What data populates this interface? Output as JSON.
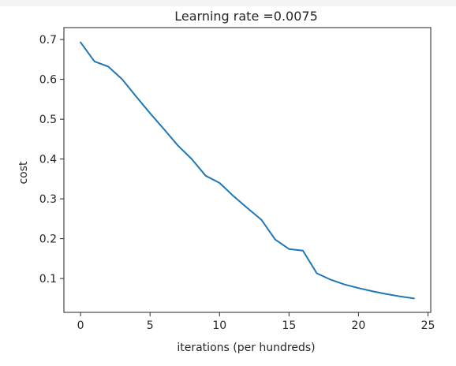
{
  "chart_data": {
    "type": "line",
    "title": "Learning rate =0.0075",
    "xlabel": "iterations (per hundreds)",
    "ylabel": "cost",
    "xlim": [
      -1.2,
      25.2
    ],
    "ylim": [
      0.015,
      0.73
    ],
    "xticks": [
      0,
      5,
      10,
      15,
      20,
      25
    ],
    "xtick_labels": [
      "0",
      "5",
      "10",
      "15",
      "20",
      "25"
    ],
    "yticks": [
      0.1,
      0.2,
      0.3,
      0.4,
      0.5,
      0.6,
      0.7
    ],
    "ytick_labels": [
      "0.1",
      "0.2",
      "0.3",
      "0.4",
      "0.5",
      "0.6",
      "0.7"
    ],
    "grid": false,
    "series": [
      {
        "color": "#1f77b4",
        "x": [
          0,
          1,
          2,
          3,
          4,
          5,
          6,
          7,
          8,
          9,
          10,
          11,
          12,
          13,
          14,
          15,
          16,
          17,
          18,
          19,
          20,
          21,
          22,
          23,
          24
        ],
        "y": [
          0.693,
          0.645,
          0.632,
          0.6,
          0.557,
          0.515,
          0.475,
          0.434,
          0.4,
          0.358,
          0.34,
          0.307,
          0.277,
          0.248,
          0.198,
          0.174,
          0.17,
          0.113,
          0.097,
          0.085,
          0.076,
          0.068,
          0.061,
          0.055,
          0.05
        ]
      }
    ]
  }
}
